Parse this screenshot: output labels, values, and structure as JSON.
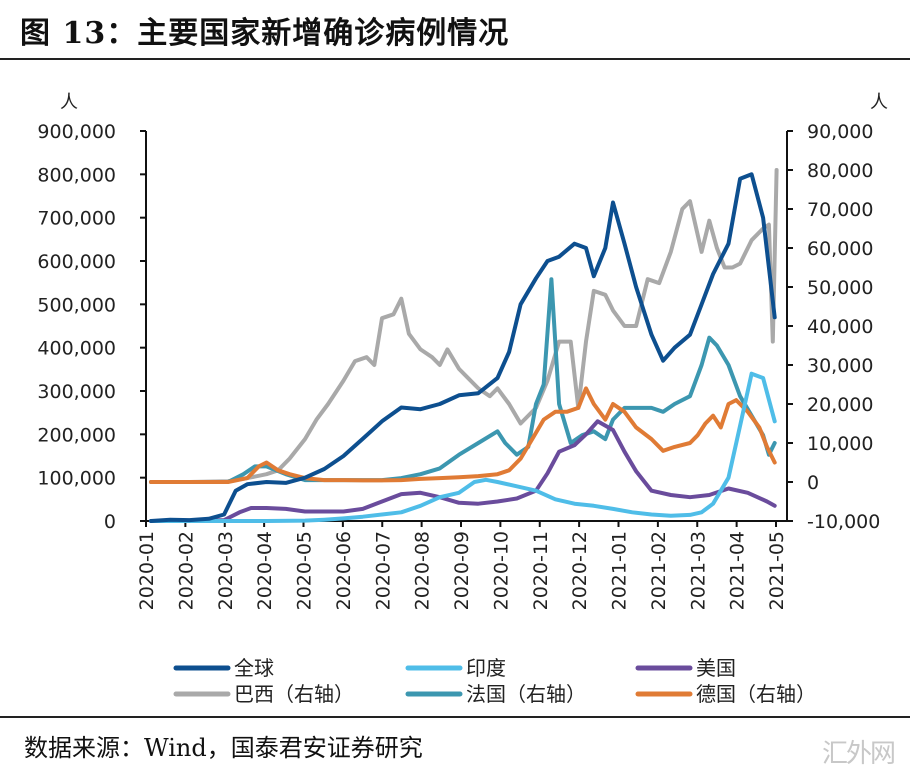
{
  "figure": {
    "title": "图 13：主要国家新增确诊病例情况",
    "source": "数据来源：Wind，国泰君安证券研究",
    "watermark": "汇外网"
  },
  "chart_data": {
    "type": "line",
    "title": "主要国家新增确诊病例情况",
    "xlabel": "",
    "left_axis": {
      "unit": "人",
      "ylim": [
        0,
        900000
      ],
      "ticks": [
        0,
        100000,
        200000,
        300000,
        400000,
        500000,
        600000,
        700000,
        800000,
        900000
      ],
      "tick_labels": [
        "0",
        "100,000",
        "200,000",
        "300,000",
        "400,000",
        "500,000",
        "600,000",
        "700,000",
        "800,000",
        "900,000"
      ]
    },
    "right_axis": {
      "unit": "人",
      "ylim": [
        -10000,
        90000
      ],
      "ticks": [
        -10000,
        0,
        10000,
        20000,
        30000,
        40000,
        50000,
        60000,
        70000,
        80000,
        90000
      ],
      "tick_labels": [
        "-10,000",
        "0",
        "10,000",
        "20,000",
        "30,000",
        "40,000",
        "50,000",
        "60,000",
        "70,000",
        "80,000",
        "90,000"
      ]
    },
    "x_ticks": [
      "2020-01",
      "2020-02",
      "2020-03",
      "2020-04",
      "2020-05",
      "2020-06",
      "2020-07",
      "2020-08",
      "2020-09",
      "2020-10",
      "2020-11",
      "2020-12",
      "2021-01",
      "2021-02",
      "2021-03",
      "2021-04",
      "2021-05"
    ],
    "x_range_months": [
      0,
      16.3
    ],
    "grid": false,
    "legend_position": "bottom",
    "series": [
      {
        "name": "全球",
        "axis": "left",
        "color": "#0d4f8f",
        "x": [
          0,
          0.5,
          1,
          1.5,
          1.9,
          2.2,
          2.5,
          3,
          3.5,
          4,
          4.5,
          5,
          5.5,
          6,
          6.5,
          7,
          7.5,
          8,
          8.5,
          9,
          9.3,
          9.6,
          10,
          10.3,
          10.6,
          11,
          11.3,
          11.5,
          11.8,
          12,
          12.3,
          12.6,
          13,
          13.3,
          13.6,
          14,
          14.3,
          14.6,
          15,
          15.3,
          15.6,
          15.9,
          16.2
        ],
        "values": [
          0,
          3000,
          2000,
          5000,
          15000,
          70000,
          85000,
          90000,
          88000,
          100000,
          120000,
          150000,
          190000,
          230000,
          262000,
          258000,
          270000,
          290000,
          295000,
          330000,
          390000,
          500000,
          560000,
          600000,
          610000,
          640000,
          630000,
          565000,
          630000,
          735000,
          640000,
          540000,
          430000,
          370000,
          400000,
          430000,
          500000,
          570000,
          640000,
          790000,
          800000,
          700000,
          470000
        ]
      },
      {
        "name": "印度",
        "axis": "left",
        "color": "#4fbde8",
        "x": [
          0,
          2,
          3,
          4,
          4.5,
          5,
          5.5,
          6,
          6.5,
          7,
          7.5,
          8,
          8.4,
          8.7,
          9,
          9.5,
          10,
          10.5,
          11,
          11.5,
          12,
          12.5,
          13,
          13.5,
          14,
          14.3,
          14.6,
          15,
          15.3,
          15.6,
          15.9,
          16.2
        ],
        "values": [
          0,
          0,
          0,
          1000,
          3000,
          6000,
          10000,
          15000,
          20000,
          35000,
          55000,
          65000,
          90000,
          95000,
          90000,
          80000,
          70000,
          50000,
          40000,
          35000,
          28000,
          20000,
          15000,
          12000,
          14000,
          20000,
          40000,
          100000,
          220000,
          340000,
          330000,
          230000
        ]
      },
      {
        "name": "美国",
        "axis": "left",
        "color": "#6a4c9c",
        "x": [
          0,
          1,
          1.9,
          2.3,
          2.6,
          3,
          3.5,
          4,
          4.5,
          5,
          5.5,
          6,
          6.5,
          7,
          7.5,
          8,
          8.5,
          9,
          9.5,
          10,
          10.3,
          10.6,
          11,
          11.3,
          11.6,
          12,
          12.3,
          12.6,
          13,
          13.5,
          14,
          14.5,
          15,
          15.5,
          16,
          16.2
        ],
        "values": [
          0,
          0,
          2000,
          20000,
          30000,
          30000,
          28000,
          22000,
          22000,
          22000,
          28000,
          45000,
          62000,
          65000,
          55000,
          42000,
          40000,
          45000,
          52000,
          70000,
          110000,
          160000,
          175000,
          200000,
          230000,
          210000,
          160000,
          115000,
          70000,
          60000,
          55000,
          60000,
          75000,
          65000,
          45000,
          35000
        ]
      },
      {
        "name": "巴西（右轴）",
        "axis": "right",
        "color": "#a9a9a9",
        "x": [
          0,
          1,
          2,
          2.5,
          3,
          3.3,
          3.6,
          4,
          4.3,
          4.6,
          5,
          5.3,
          5.6,
          5.8,
          6,
          6.3,
          6.5,
          6.7,
          7,
          7.3,
          7.5,
          7.7,
          8,
          8.2,
          8.5,
          8.8,
          9,
          9.3,
          9.6,
          10,
          10.3,
          10.6,
          10.9,
          11.1,
          11.3,
          11.5,
          11.8,
          12,
          12.3,
          12.6,
          12.9,
          13.2,
          13.5,
          13.8,
          14,
          14.3,
          14.5,
          14.7,
          14.9,
          15.1,
          15.3,
          15.6,
          15.9,
          16.05,
          16.15,
          16.25
        ],
        "values": [
          0,
          0,
          200,
          1000,
          2000,
          3000,
          6000,
          11000,
          16000,
          20000,
          26000,
          31000,
          32000,
          30000,
          42000,
          43000,
          47000,
          38000,
          34000,
          32000,
          30000,
          34000,
          29000,
          27000,
          24000,
          22000,
          24000,
          20000,
          15000,
          19000,
          26000,
          36000,
          36000,
          19000,
          36000,
          49000,
          48000,
          44000,
          40000,
          40000,
          52000,
          51000,
          59000,
          70000,
          72000,
          59000,
          67000,
          60000,
          55000,
          55000,
          56000,
          62000,
          65000,
          66000,
          36000,
          80000
        ]
      },
      {
        "name": "法国（右轴）",
        "axis": "right",
        "color": "#3c97b0",
        "x": [
          0,
          1,
          2,
          2.4,
          2.7,
          3,
          3.5,
          4,
          4.5,
          5,
          5.5,
          6,
          6.5,
          7,
          7.5,
          8,
          8.5,
          9,
          9.2,
          9.5,
          9.8,
          10,
          10.2,
          10.4,
          10.6,
          10.9,
          11.2,
          11.5,
          11.8,
          12,
          12.3,
          12.6,
          13,
          13.3,
          13.6,
          14,
          14.3,
          14.5,
          14.7,
          15,
          15.3,
          15.6,
          15.9,
          16.05,
          16.2
        ],
        "values": [
          0,
          0,
          0,
          2000,
          4000,
          4000,
          2000,
          500,
          500,
          500,
          500,
          500,
          1000,
          2000,
          3500,
          7000,
          10000,
          13000,
          10000,
          7000,
          9000,
          20000,
          25000,
          52000,
          20000,
          10000,
          12000,
          13000,
          11000,
          16000,
          19000,
          19000,
          19000,
          18000,
          20000,
          22000,
          30000,
          37000,
          35000,
          30000,
          22000,
          17000,
          12000,
          7000,
          10000
        ]
      },
      {
        "name": "德国（右轴）",
        "axis": "right",
        "color": "#e07b35",
        "x": [
          0,
          1,
          2,
          2.5,
          2.8,
          3,
          3.3,
          3.6,
          4,
          4.5,
          5,
          5.5,
          6,
          6.5,
          7,
          7.5,
          8,
          8.5,
          9,
          9.3,
          9.6,
          9.9,
          10.2,
          10.5,
          10.8,
          11.1,
          11.3,
          11.5,
          11.8,
          12,
          12.3,
          12.6,
          13,
          13.3,
          13.6,
          14,
          14.2,
          14.4,
          14.6,
          14.8,
          15,
          15.2,
          15.5,
          15.8,
          16.0,
          16.2
        ],
        "values": [
          0,
          0,
          0,
          1000,
          4000,
          5000,
          3000,
          2000,
          1000,
          500,
          500,
          400,
          400,
          500,
          800,
          1000,
          1200,
          1500,
          2000,
          3000,
          6000,
          11000,
          16000,
          18000,
          18000,
          19000,
          24000,
          20000,
          16000,
          20000,
          18000,
          14000,
          11000,
          8000,
          9000,
          10000,
          12000,
          15000,
          17000,
          14000,
          20000,
          21000,
          18000,
          14000,
          9000,
          5000
        ]
      }
    ]
  }
}
